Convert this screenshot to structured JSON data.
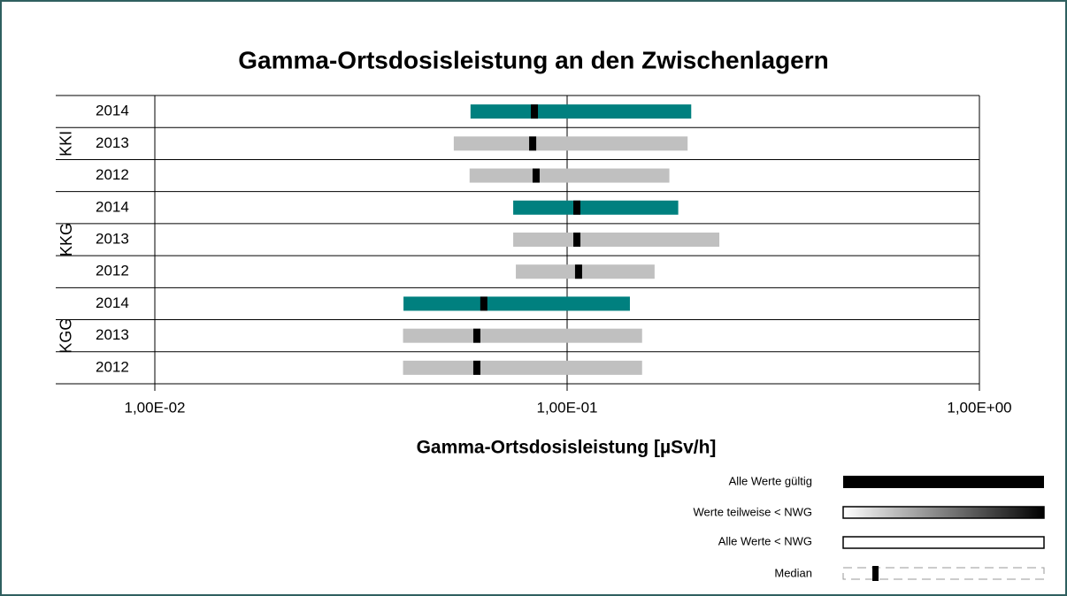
{
  "chart_data": {
    "type": "range",
    "title": "Gamma-Ortsdosisleistung an den Zwischenlagern",
    "xlabel": "Gamma-Ortsdosisleistung [µSv/h]",
    "xscale": "log",
    "xlim": [
      0.01,
      1
    ],
    "xticks": [
      {
        "value": 0.01,
        "label": "1,00E-02"
      },
      {
        "value": 0.1,
        "label": "1,00E-01"
      },
      {
        "value": 1,
        "label": "1,00E+00"
      }
    ],
    "groups": [
      {
        "name": "KKI",
        "rows": [
          {
            "year": "2014",
            "low": 0.0583,
            "high": 0.2,
            "median": 0.0833,
            "color": "#00807f"
          },
          {
            "year": "2013",
            "low": 0.0531,
            "high": 0.196,
            "median": 0.0825,
            "color": "#c0c0c0"
          },
          {
            "year": "2012",
            "low": 0.058,
            "high": 0.177,
            "median": 0.0841,
            "color": "#c0c0c0"
          }
        ]
      },
      {
        "name": "KKG",
        "rows": [
          {
            "year": "2014",
            "low": 0.074,
            "high": 0.186,
            "median": 0.1056,
            "color": "#00807f"
          },
          {
            "year": "2013",
            "low": 0.074,
            "high": 0.234,
            "median": 0.1056,
            "color": "#c0c0c0"
          },
          {
            "year": "2012",
            "low": 0.0751,
            "high": 0.163,
            "median": 0.1066,
            "color": "#c0c0c0"
          }
        ]
      },
      {
        "name": "KGG",
        "rows": [
          {
            "year": "2014",
            "low": 0.0401,
            "high": 0.142,
            "median": 0.0628,
            "color": "#00807f"
          },
          {
            "year": "2013",
            "low": 0.04,
            "high": 0.152,
            "median": 0.0604,
            "color": "#c0c0c0"
          },
          {
            "year": "2012",
            "low": 0.04,
            "high": 0.152,
            "median": 0.0604,
            "color": "#c0c0c0"
          }
        ]
      }
    ],
    "legend": [
      "Alle Werte gültig",
      "Werte teilweise < NWG",
      "Alle Werte < NWG",
      "Median"
    ]
  }
}
